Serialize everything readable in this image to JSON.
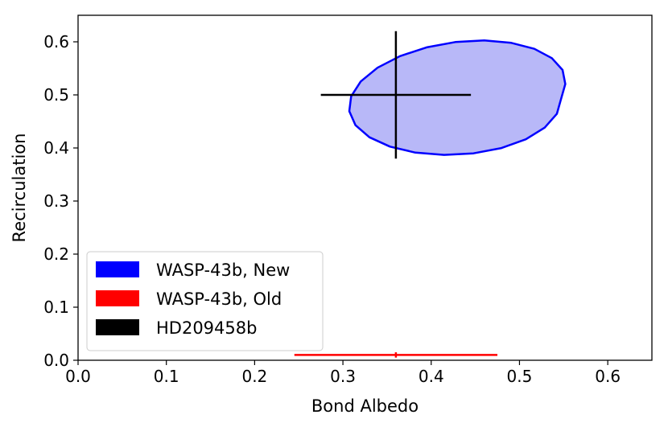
{
  "chart_data": {
    "type": "scatter",
    "xlabel": "Bond Albedo",
    "ylabel": "Recirculation",
    "xlim": [
      0.0,
      0.65
    ],
    "ylim": [
      0.0,
      0.65
    ],
    "xticks": [
      0.0,
      0.1,
      0.2,
      0.3,
      0.4,
      0.5,
      0.6
    ],
    "yticks": [
      0.0,
      0.1,
      0.2,
      0.3,
      0.4,
      0.5,
      0.6
    ],
    "xtick_labels": [
      "0.0",
      "0.1",
      "0.2",
      "0.3",
      "0.4",
      "0.5",
      "0.6"
    ],
    "ytick_labels": [
      "0.0",
      "0.1",
      "0.2",
      "0.3",
      "0.4",
      "0.5",
      "0.6"
    ],
    "grid": false,
    "legend_position": "lower-left",
    "series": [
      {
        "name": "WASP-43b, New",
        "color": "#0000ff",
        "fill": "#b8b8f8",
        "kind": "ellipse",
        "polygon": [
          [
            0.5519,
            0.5205
          ],
          [
            0.5488,
            0.5469
          ],
          [
            0.5367,
            0.5693
          ],
          [
            0.5168,
            0.5868
          ],
          [
            0.4906,
            0.5981
          ],
          [
            0.4601,
            0.6025
          ],
          [
            0.4273,
            0.5996
          ],
          [
            0.3948,
            0.5896
          ],
          [
            0.3647,
            0.5731
          ],
          [
            0.3392,
            0.5512
          ],
          [
            0.3202,
            0.5253
          ],
          [
            0.3093,
            0.4973
          ],
          [
            0.3072,
            0.4692
          ],
          [
            0.3142,
            0.4429
          ],
          [
            0.33,
            0.4202
          ],
          [
            0.3533,
            0.4026
          ],
          [
            0.3822,
            0.3912
          ],
          [
            0.4146,
            0.3869
          ],
          [
            0.4479,
            0.3899
          ],
          [
            0.4796,
            0.3999
          ],
          [
            0.5072,
            0.4163
          ],
          [
            0.5286,
            0.4384
          ],
          [
            0.5423,
            0.4643
          ],
          [
            0.5472,
            0.4927
          ],
          [
            0.5519,
            0.5205
          ]
        ]
      },
      {
        "name": "WASP-43b, Old",
        "color": "#ff0000",
        "kind": "errorbar",
        "x": 0.36,
        "y": 0.01,
        "xerr": [
          0.115,
          0.115
        ],
        "yerr": [
          0.005,
          0.005
        ]
      },
      {
        "name": "HD209458b",
        "color": "#000000",
        "kind": "errorbar",
        "x": 0.36,
        "y": 0.5,
        "xerr": [
          0.085,
          0.085
        ],
        "yerr": [
          0.12,
          0.12
        ]
      }
    ]
  }
}
